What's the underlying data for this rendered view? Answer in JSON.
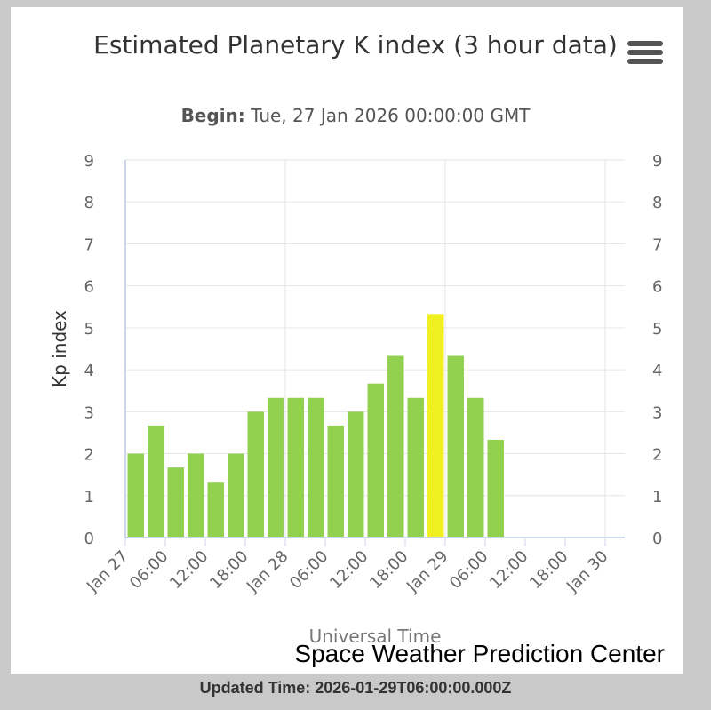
{
  "chart_data": {
    "type": "bar",
    "title": "Estimated Planetary K index (3 hour data)",
    "subtitle_label": "Begin:",
    "subtitle_value": "Tue, 27 Jan 2026 00:00:00 GMT",
    "ylabel": "Kp index",
    "xlabel": "Universal Time",
    "ylim": [
      0,
      9
    ],
    "yticks": [
      "0",
      "1",
      "2",
      "3",
      "4",
      "5",
      "6",
      "7",
      "8",
      "9"
    ],
    "xticks": [
      "Jan 27",
      "06:00",
      "12:00",
      "18:00",
      "Jan 28",
      "06:00",
      "12:00",
      "18:00",
      "Jan 29",
      "06:00",
      "12:00",
      "18:00",
      "Jan 30"
    ],
    "x_start": "2026-01-27T00:00:00Z",
    "x_end": "2026-01-30T00:00:00Z",
    "bar_interval_hours": 3,
    "values": [
      2.0,
      2.67,
      1.67,
      2.0,
      1.33,
      2.0,
      3.0,
      3.33,
      3.33,
      3.33,
      2.67,
      3.0,
      3.67,
      4.33,
      3.33,
      5.33,
      4.33,
      3.33,
      2.33
    ],
    "colors": {
      "normal": "#92d050",
      "storm": "#f0f020",
      "grid": "#e6e6e6",
      "axis": "#ccd6eb",
      "text": "#666666"
    },
    "grid": true,
    "legend": "none"
  },
  "menu_icon": "hamburger-menu-icon",
  "footer": {
    "credits": "Space Weather Prediction Center",
    "updated": "Updated Time: 2026-01-29T06:00:00.000Z"
  }
}
